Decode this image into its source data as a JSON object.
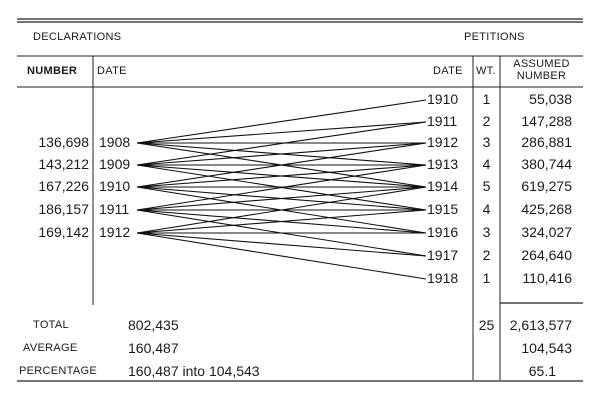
{
  "header": {
    "declarations": "DECLARATIONS",
    "petitions": "PETITIONS",
    "number": "NUMBER",
    "date_left": "DATE",
    "date_right": "DATE",
    "wt": "WT.",
    "assumed_number_line1": "ASSUMED",
    "assumed_number_line2": "NUMBER"
  },
  "declarations": [
    {
      "number": "136,698",
      "date": "1908"
    },
    {
      "number": "143,212",
      "date": "1909"
    },
    {
      "number": "167,226",
      "date": "1910"
    },
    {
      "number": "186,157",
      "date": "1911"
    },
    {
      "number": "169,142",
      "date": "1912"
    }
  ],
  "petitions": [
    {
      "date": "1910",
      "wt": "1",
      "assumed": "55,038"
    },
    {
      "date": "1911",
      "wt": "2",
      "assumed": "147,288"
    },
    {
      "date": "1912",
      "wt": "3",
      "assumed": "286,881"
    },
    {
      "date": "1913",
      "wt": "4",
      "assumed": "380,744"
    },
    {
      "date": "1914",
      "wt": "5",
      "assumed": "619,275"
    },
    {
      "date": "1915",
      "wt": "4",
      "assumed": "425,268"
    },
    {
      "date": "1916",
      "wt": "3",
      "assumed": "324,027"
    },
    {
      "date": "1917",
      "wt": "2",
      "assumed": "264,640"
    },
    {
      "date": "1918",
      "wt": "1",
      "assumed": "110,416"
    }
  ],
  "links": [
    [
      "1908",
      "1910"
    ],
    [
      "1908",
      "1911"
    ],
    [
      "1908",
      "1912"
    ],
    [
      "1908",
      "1913"
    ],
    [
      "1908",
      "1914"
    ],
    [
      "1909",
      "1911"
    ],
    [
      "1909",
      "1912"
    ],
    [
      "1909",
      "1913"
    ],
    [
      "1909",
      "1914"
    ],
    [
      "1909",
      "1915"
    ],
    [
      "1910",
      "1912"
    ],
    [
      "1910",
      "1913"
    ],
    [
      "1910",
      "1914"
    ],
    [
      "1910",
      "1915"
    ],
    [
      "1910",
      "1916"
    ],
    [
      "1911",
      "1913"
    ],
    [
      "1911",
      "1914"
    ],
    [
      "1911",
      "1915"
    ],
    [
      "1911",
      "1916"
    ],
    [
      "1911",
      "1917"
    ],
    [
      "1912",
      "1914"
    ],
    [
      "1912",
      "1915"
    ],
    [
      "1912",
      "1916"
    ],
    [
      "1912",
      "1917"
    ],
    [
      "1912",
      "1918"
    ]
  ],
  "summary": {
    "total_label": "TOTAL",
    "total_value": "802,435",
    "total_wt": "25",
    "total_assumed": "2,613,577",
    "average_label": "AVERAGE",
    "average_value": "160,487",
    "average_assumed": "104,543",
    "percentage_label": "PERCENTAGE",
    "percentage_value": "160,487 into 104,543",
    "percentage_result": "65.1"
  }
}
